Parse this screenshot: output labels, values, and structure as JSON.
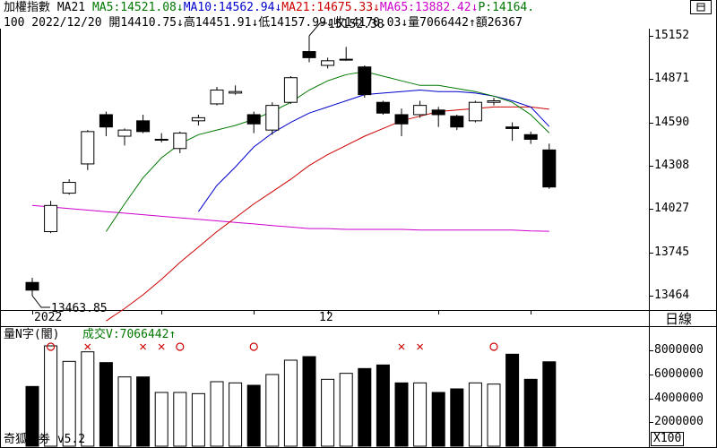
{
  "header": {
    "line1": [
      {
        "text": "加權指數 MA21 ",
        "cls": ""
      },
      {
        "text": "MA5:14521.08↓",
        "cls": "ma5"
      },
      {
        "text": "MA10:14562.94↓",
        "cls": "ma10"
      },
      {
        "text": "MA21:14675.33↓",
        "cls": "ma21"
      },
      {
        "text": "MA65:13882.42↓",
        "cls": "ma65"
      },
      {
        "text": "P:14164.",
        "cls": "pv"
      }
    ],
    "line2": "100 2022/12/20 開14410.75↓高14451.91↓低14157.99↓收14170.03↓量7066442↑額26367"
  },
  "price_axis": {
    "labels": [
      "15152",
      "14871",
      "14590",
      "14308",
      "14027",
      "13745",
      "13464"
    ],
    "min": 13464,
    "max": 15152
  },
  "annotations": {
    "high": "15152.38",
    "low": "13463.85"
  },
  "date_axis": {
    "year": "2022",
    "month": "12"
  },
  "period_button": "日線",
  "volume_panel": {
    "title": "量N字(闇)",
    "indicator": "成交V:7066442↑",
    "axis_labels": [
      "8000000",
      "6000000",
      "4000000",
      "2000000"
    ],
    "unit": "X100",
    "max": 8400000
  },
  "footer": {
    "watermark": "奇狐勝券 v5.2"
  },
  "colors": {
    "ma5": "#007800",
    "ma10": "#0000cc",
    "ma21": "#cc0000",
    "ma65": "#cc00cc",
    "bull": "#ffffff",
    "bear": "#000000",
    "signal_o": "#cc0000",
    "signal_x": "#cc0000"
  },
  "chart_data": {
    "type": "candlestick",
    "title": "加權指數",
    "candles": [
      {
        "o": 13550,
        "h": 13580,
        "l": 13464,
        "c": 13500
      },
      {
        "o": 13880,
        "h": 14080,
        "l": 13870,
        "c": 14050
      },
      {
        "o": 14130,
        "h": 14220,
        "l": 14120,
        "c": 14200
      },
      {
        "o": 14320,
        "h": 14540,
        "l": 14280,
        "c": 14530
      },
      {
        "o": 14640,
        "h": 14660,
        "l": 14500,
        "c": 14560
      },
      {
        "o": 14500,
        "h": 14550,
        "l": 14440,
        "c": 14540
      },
      {
        "o": 14600,
        "h": 14640,
        "l": 14520,
        "c": 14530
      },
      {
        "o": 14480,
        "h": 14520,
        "l": 14460,
        "c": 14480
      },
      {
        "o": 14420,
        "h": 14530,
        "l": 14390,
        "c": 14520
      },
      {
        "o": 14600,
        "h": 14640,
        "l": 14570,
        "c": 14620
      },
      {
        "o": 14710,
        "h": 14820,
        "l": 14700,
        "c": 14800
      },
      {
        "o": 14780,
        "h": 14830,
        "l": 14770,
        "c": 14790
      },
      {
        "o": 14640,
        "h": 14660,
        "l": 14520,
        "c": 14580
      },
      {
        "o": 14540,
        "h": 14720,
        "l": 14510,
        "c": 14700
      },
      {
        "o": 14720,
        "h": 14890,
        "l": 14710,
        "c": 14880
      },
      {
        "o": 15050,
        "h": 15152.38,
        "l": 14980,
        "c": 15010
      },
      {
        "o": 14960,
        "h": 15010,
        "l": 14940,
        "c": 14990
      },
      {
        "o": 15000,
        "h": 15080,
        "l": 14990,
        "c": 15000
      },
      {
        "o": 14950,
        "h": 14960,
        "l": 14750,
        "c": 14770
      },
      {
        "o": 14720,
        "h": 14730,
        "l": 14640,
        "c": 14650
      },
      {
        "o": 14640,
        "h": 14680,
        "l": 14500,
        "c": 14580
      },
      {
        "o": 14640,
        "h": 14730,
        "l": 14620,
        "c": 14700
      },
      {
        "o": 14670,
        "h": 14690,
        "l": 14560,
        "c": 14640
      },
      {
        "o": 14630,
        "h": 14640,
        "l": 14540,
        "c": 14560
      },
      {
        "o": 14600,
        "h": 14730,
        "l": 14590,
        "c": 14720
      },
      {
        "o": 14720,
        "h": 14750,
        "l": 14700,
        "c": 14730
      },
      {
        "o": 14560,
        "h": 14590,
        "l": 14470,
        "c": 14550
      },
      {
        "o": 14510,
        "h": 14530,
        "l": 14450,
        "c": 14480
      },
      {
        "o": 14410.75,
        "h": 14451.91,
        "l": 14157.99,
        "c": 14170.03
      }
    ],
    "ma5": [
      null,
      null,
      null,
      null,
      13880,
      14060,
      14230,
      14360,
      14450,
      14510,
      14540,
      14570,
      14610,
      14660,
      14720,
      14800,
      14860,
      14900,
      14920,
      14890,
      14860,
      14830,
      14830,
      14810,
      14790,
      14760,
      14720,
      14640,
      14521.08
    ],
    "ma10": [
      null,
      null,
      null,
      null,
      null,
      null,
      null,
      null,
      null,
      14010,
      14180,
      14300,
      14430,
      14520,
      14590,
      14650,
      14690,
      14730,
      14770,
      14780,
      14790,
      14800,
      14790,
      14790,
      14780,
      14760,
      14730,
      14690,
      14562.94
    ],
    "ma21": [
      null,
      null,
      null,
      null,
      13300,
      13380,
      13470,
      13570,
      13680,
      13780,
      13880,
      13970,
      14060,
      14140,
      14220,
      14310,
      14380,
      14440,
      14500,
      14550,
      14600,
      14630,
      14660,
      14670,
      14680,
      14690,
      14690,
      14690,
      14675.33
    ],
    "ma65": [
      14050,
      14040,
      14030,
      14020,
      14010,
      14000,
      13990,
      13980,
      13970,
      13960,
      13950,
      13940,
      13930,
      13920,
      13910,
      13900,
      13900,
      13895,
      13895,
      13895,
      13895,
      13890,
      13890,
      13890,
      13890,
      13890,
      13890,
      13885,
      13882.42
    ],
    "volume": [
      5000000,
      8400000,
      7100000,
      7900000,
      7000000,
      5800000,
      5800000,
      4500000,
      4500000,
      4400000,
      5400000,
      5300000,
      5100000,
      6000000,
      7200000,
      7500000,
      5600000,
      6100000,
      6500000,
      6800000,
      5300000,
      5300000,
      4500000,
      4800000,
      5300000,
      5200000,
      7700000,
      5600000,
      7066442
    ],
    "signals": [
      null,
      "o",
      null,
      "x",
      null,
      null,
      "x",
      "x",
      "o",
      null,
      null,
      null,
      "o",
      null,
      null,
      null,
      null,
      null,
      null,
      null,
      "x",
      "x",
      null,
      null,
      null,
      "o",
      null,
      null,
      null
    ]
  }
}
